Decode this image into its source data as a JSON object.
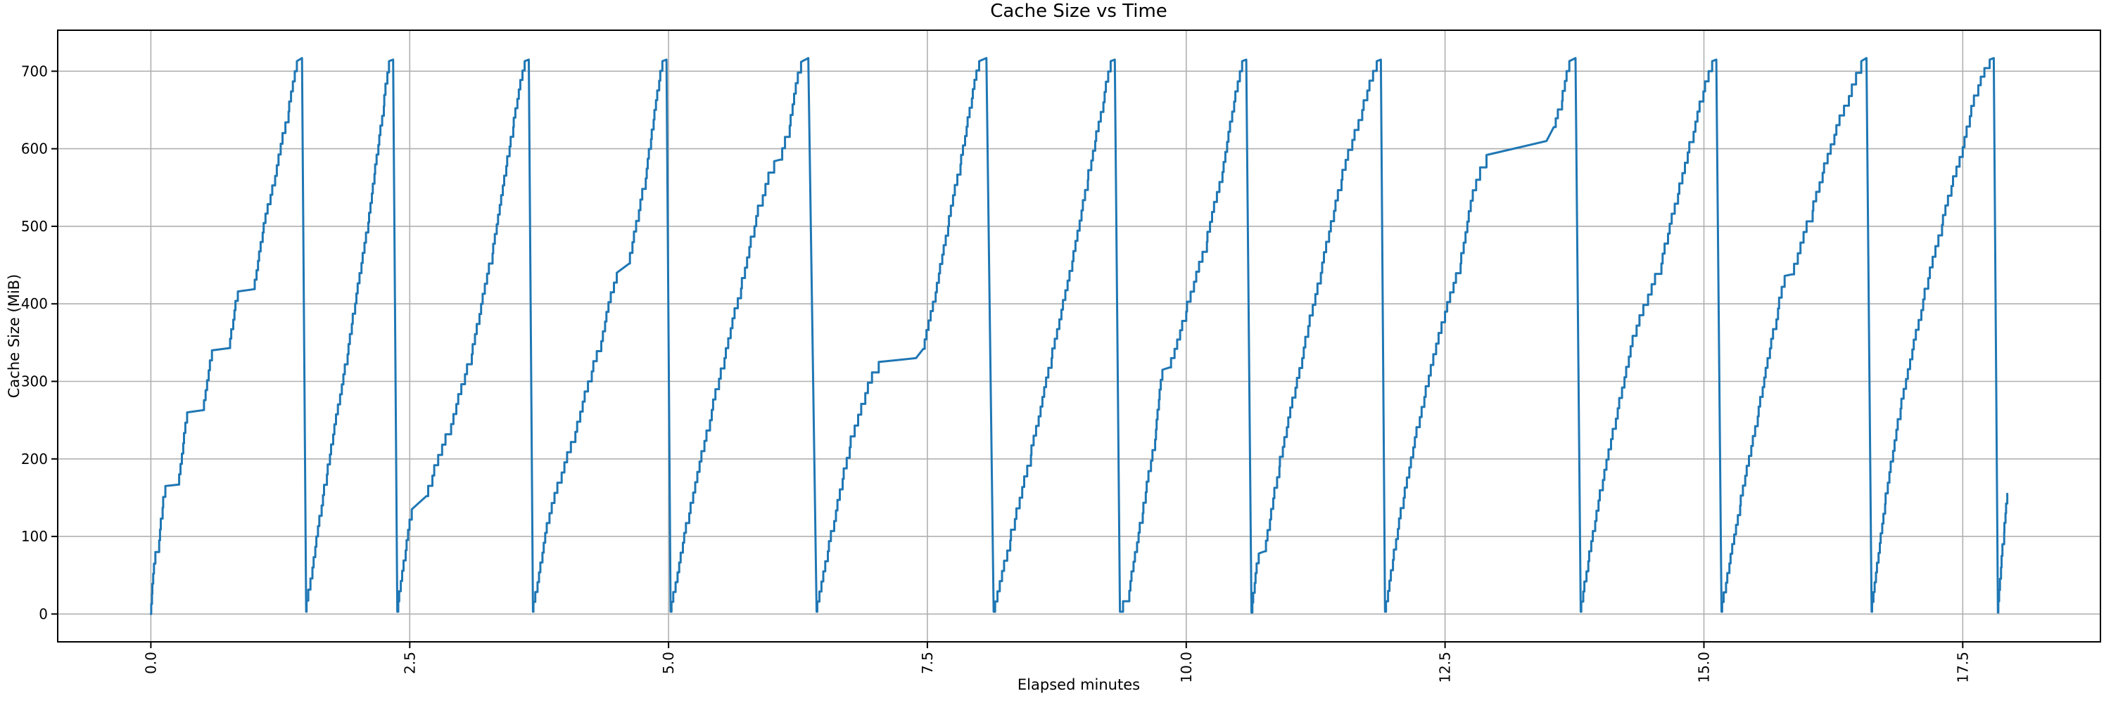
{
  "figure": {
    "title": "Cache Size vs Time",
    "xlabel": "Elapsed minutes",
    "ylabel": "Cache Size (MiB)"
  },
  "chart_data": {
    "type": "line",
    "title": "Cache Size vs Time",
    "xlabel": "Elapsed minutes",
    "ylabel": "Cache Size (MiB)",
    "xlim": [
      -0.9,
      18.83
    ],
    "ylim": [
      -35.9,
      752.9
    ],
    "xticks": [
      0.0,
      2.5,
      5.0,
      7.5,
      10.0,
      12.5,
      15.0,
      17.5
    ],
    "xtick_labels": [
      "0.0",
      "2.5",
      "5.0",
      "7.5",
      "10.0",
      "12.5",
      "15.0",
      "17.5"
    ],
    "yticks": [
      0,
      100,
      200,
      300,
      400,
      500,
      600,
      700
    ],
    "ytick_labels": [
      "0",
      "100",
      "200",
      "300",
      "400",
      "500",
      "600",
      "700"
    ],
    "grid": true,
    "grid_color": "#b0b0b0",
    "line_color": "#1f77b4",
    "spine_color": "#000000",
    "pattern": "sawtooth: cache grows in small steps to ~717 MiB then is evicted to ~0",
    "peak_times_min": [
      1.41,
      2.3,
      3.61,
      4.94,
      6.28,
      8.0,
      9.27,
      10.54,
      11.84,
      13.7,
      15.08,
      16.52,
      17.76
    ],
    "peak_value_mib": 717,
    "series": [
      {
        "name": "cache_size_mib",
        "points": [
          [
            0.0,
            0
          ],
          [
            0.03,
            65
          ],
          [
            0.08,
            95
          ],
          [
            0.14,
            165
          ],
          [
            0.27,
            167,
            1
          ],
          [
            0.35,
            260
          ],
          [
            0.51,
            263,
            1
          ],
          [
            0.59,
            340
          ],
          [
            0.76,
            343,
            1
          ],
          [
            0.84,
            416
          ],
          [
            1.0,
            419,
            1
          ],
          [
            1.08,
            492
          ],
          [
            1.2,
            565
          ],
          [
            1.33,
            648
          ],
          [
            1.41,
            713
          ],
          [
            1.46,
            717,
            1
          ],
          [
            1.5,
            3,
            1
          ],
          [
            1.56,
            60
          ],
          [
            1.7,
            180
          ],
          [
            1.9,
            335
          ],
          [
            2.1,
            505
          ],
          [
            2.25,
            655
          ],
          [
            2.3,
            713
          ],
          [
            2.34,
            715,
            1
          ],
          [
            2.38,
            3,
            1
          ],
          [
            2.52,
            135
          ],
          [
            2.66,
            152,
            1
          ],
          [
            2.9,
            245
          ],
          [
            3.1,
            335
          ],
          [
            3.3,
            465
          ],
          [
            3.5,
            628
          ],
          [
            3.61,
            713
          ],
          [
            3.65,
            715,
            1
          ],
          [
            3.69,
            3,
            1
          ],
          [
            3.85,
            130
          ],
          [
            4.1,
            235
          ],
          [
            4.35,
            352
          ],
          [
            4.5,
            440
          ],
          [
            4.62,
            452,
            1
          ],
          [
            4.78,
            562
          ],
          [
            4.94,
            713
          ],
          [
            4.98,
            715,
            1
          ],
          [
            5.02,
            3,
            1
          ],
          [
            5.2,
            130
          ],
          [
            5.4,
            250
          ],
          [
            5.54,
            330
          ],
          [
            5.7,
            420
          ],
          [
            5.83,
            500
          ],
          [
            5.91,
            540
          ],
          [
            6.02,
            584
          ],
          [
            6.08,
            586,
            1
          ],
          [
            6.17,
            630
          ],
          [
            6.28,
            712
          ],
          [
            6.35,
            717,
            1
          ],
          [
            6.43,
            3,
            1
          ],
          [
            6.6,
            120
          ],
          [
            6.75,
            215
          ],
          [
            6.9,
            285
          ],
          [
            7.03,
            325
          ],
          [
            7.39,
            330,
            1
          ],
          [
            7.46,
            342
          ],
          [
            7.58,
            415
          ],
          [
            7.7,
            500
          ],
          [
            7.82,
            580
          ],
          [
            7.93,
            665
          ],
          [
            8.0,
            713
          ],
          [
            8.07,
            717,
            1
          ],
          [
            8.14,
            3,
            1
          ],
          [
            8.3,
            95
          ],
          [
            8.5,
            205
          ],
          [
            8.7,
            330
          ],
          [
            8.9,
            455
          ],
          [
            9.05,
            560
          ],
          [
            9.2,
            660
          ],
          [
            9.27,
            713
          ],
          [
            9.31,
            715,
            1
          ],
          [
            9.36,
            3,
            1
          ],
          [
            9.45,
            30
          ],
          [
            9.58,
            130
          ],
          [
            9.7,
            225
          ],
          [
            9.77,
            315
          ],
          [
            9.84,
            318,
            1
          ],
          [
            10.0,
            390
          ],
          [
            10.2,
            480
          ],
          [
            10.35,
            570
          ],
          [
            10.54,
            713
          ],
          [
            10.58,
            715,
            1
          ],
          [
            10.63,
            2,
            1
          ],
          [
            10.7,
            78
          ],
          [
            10.76,
            81,
            1
          ],
          [
            10.9,
            190
          ],
          [
            11.12,
            330
          ],
          [
            11.3,
            440
          ],
          [
            11.5,
            560
          ],
          [
            11.7,
            650
          ],
          [
            11.84,
            713
          ],
          [
            11.88,
            715,
            1
          ],
          [
            11.92,
            3,
            1
          ],
          [
            12.1,
            150
          ],
          [
            12.3,
            280
          ],
          [
            12.5,
            390
          ],
          [
            12.65,
            452
          ],
          [
            12.8,
            560
          ],
          [
            12.9,
            592
          ],
          [
            13.48,
            610,
            1
          ],
          [
            13.55,
            628
          ],
          [
            13.63,
            662
          ],
          [
            13.7,
            713
          ],
          [
            13.76,
            717,
            1
          ],
          [
            13.81,
            3,
            1
          ],
          [
            13.95,
            120
          ],
          [
            14.15,
            252
          ],
          [
            14.35,
            372
          ],
          [
            14.59,
            452
          ],
          [
            14.75,
            542
          ],
          [
            14.9,
            622
          ],
          [
            15.08,
            713
          ],
          [
            15.12,
            715,
            1
          ],
          [
            15.17,
            3,
            1
          ],
          [
            15.35,
            140
          ],
          [
            15.52,
            255
          ],
          [
            15.7,
            380
          ],
          [
            15.78,
            436
          ],
          [
            15.85,
            438,
            1
          ],
          [
            16.05,
            520
          ],
          [
            16.26,
            618
          ],
          [
            16.4,
            668
          ],
          [
            16.52,
            713
          ],
          [
            16.57,
            717,
            1
          ],
          [
            16.62,
            3,
            1
          ],
          [
            16.75,
            142
          ],
          [
            16.9,
            265
          ],
          [
            17.1,
            392
          ],
          [
            17.3,
            502
          ],
          [
            17.5,
            602
          ],
          [
            17.65,
            682
          ],
          [
            17.76,
            715
          ],
          [
            17.8,
            717,
            1
          ],
          [
            17.84,
            2,
            1
          ],
          [
            17.87,
            60
          ],
          [
            17.9,
            105
          ],
          [
            17.93,
            155
          ]
        ]
      }
    ]
  }
}
